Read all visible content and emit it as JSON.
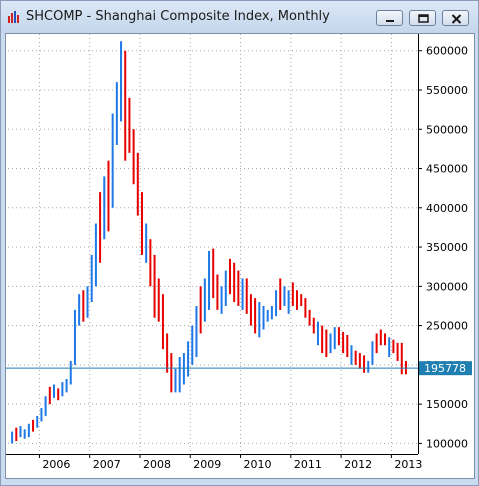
{
  "window": {
    "title": "SHCOMP - Shanghai Composite Index, Monthly",
    "icons": {
      "app": "chart-bars-icon",
      "minimize": "minimize-icon",
      "restore": "restore-icon",
      "close": "close-icon"
    }
  },
  "chart_data": {
    "type": "ohlc",
    "title": "SHCOMP - Shanghai Composite Index, Monthly",
    "ylim": [
      95000,
      615000
    ],
    "y_ticks": [
      100000,
      150000,
      200000,
      250000,
      300000,
      350000,
      400000,
      450000,
      500000,
      550000,
      600000
    ],
    "y_tick_labels": [
      "100000",
      "150000",
      "200000",
      "250000",
      "300000",
      "350000",
      "400000",
      "450000",
      "500000",
      "550000",
      "600000"
    ],
    "x_labels": [
      {
        "label": "2006",
        "index": 7
      },
      {
        "label": "2007",
        "index": 19
      },
      {
        "label": "2008",
        "index": 31
      },
      {
        "label": "2009",
        "index": 43
      },
      {
        "label": "2010",
        "index": 55
      },
      {
        "label": "2011",
        "index": 67
      },
      {
        "label": "2012",
        "index": 79
      },
      {
        "label": "2013",
        "index": 91
      }
    ],
    "current_value": 195778,
    "current_value_label": "195778",
    "up_color": "#1e78e6",
    "down_color": "#e60000",
    "price_line_color": "#1f7fb0",
    "bars": [
      [
        100000,
        115000
      ],
      [
        103000,
        120000
      ],
      [
        108000,
        122000
      ],
      [
        106000,
        118000
      ],
      [
        108000,
        125000
      ],
      [
        115000,
        130000
      ],
      [
        120000,
        135000
      ],
      [
        128000,
        145000
      ],
      [
        135000,
        160000
      ],
      [
        150000,
        172000
      ],
      [
        158000,
        175000
      ],
      [
        155000,
        170000
      ],
      [
        160000,
        178000
      ],
      [
        165000,
        182000
      ],
      [
        175000,
        205000
      ],
      [
        200000,
        270000
      ],
      [
        250000,
        290000
      ],
      [
        255000,
        295000
      ],
      [
        260000,
        300000
      ],
      [
        280000,
        340000
      ],
      [
        300000,
        380000
      ],
      [
        330000,
        420000
      ],
      [
        360000,
        440000
      ],
      [
        370000,
        460000
      ],
      [
        400000,
        520000
      ],
      [
        480000,
        560000
      ],
      [
        510000,
        612000
      ],
      [
        460000,
        600000
      ],
      [
        470000,
        540000
      ],
      [
        430000,
        500000
      ],
      [
        390000,
        470000
      ],
      [
        340000,
        420000
      ],
      [
        330000,
        380000
      ],
      [
        300000,
        360000
      ],
      [
        260000,
        340000
      ],
      [
        255000,
        310000
      ],
      [
        220000,
        290000
      ],
      [
        190000,
        240000
      ],
      [
        165000,
        215000
      ],
      [
        165000,
        195000
      ],
      [
        165000,
        210000
      ],
      [
        175000,
        215000
      ],
      [
        185000,
        230000
      ],
      [
        200000,
        250000
      ],
      [
        210000,
        275000
      ],
      [
        240000,
        300000
      ],
      [
        255000,
        310000
      ],
      [
        270000,
        345000
      ],
      [
        285000,
        348000
      ],
      [
        270000,
        315000
      ],
      [
        265000,
        300000
      ],
      [
        275000,
        320000
      ],
      [
        290000,
        335000
      ],
      [
        280000,
        330000
      ],
      [
        275000,
        320000
      ],
      [
        270000,
        310000
      ],
      [
        265000,
        310000
      ],
      [
        250000,
        290000
      ],
      [
        240000,
        285000
      ],
      [
        235000,
        280000
      ],
      [
        245000,
        275000
      ],
      [
        255000,
        270000
      ],
      [
        258000,
        275000
      ],
      [
        262000,
        295000
      ],
      [
        270000,
        310000
      ],
      [
        275000,
        300000
      ],
      [
        265000,
        295000
      ],
      [
        275000,
        305000
      ],
      [
        270000,
        295000
      ],
      [
        275000,
        290000
      ],
      [
        260000,
        285000
      ],
      [
        250000,
        270000
      ],
      [
        240000,
        260000
      ],
      [
        225000,
        255000
      ],
      [
        215000,
        250000
      ],
      [
        210000,
        245000
      ],
      [
        215000,
        240000
      ],
      [
        220000,
        248000
      ],
      [
        225000,
        248000
      ],
      [
        215000,
        242000
      ],
      [
        210000,
        238000
      ],
      [
        200000,
        225000
      ],
      [
        200000,
        218000
      ],
      [
        195000,
        215000
      ],
      [
        190000,
        212000
      ],
      [
        190000,
        205000
      ],
      [
        200000,
        230000
      ],
      [
        215000,
        240000
      ],
      [
        225000,
        245000
      ],
      [
        225000,
        240000
      ],
      [
        210000,
        235000
      ],
      [
        215000,
        232000
      ],
      [
        205000,
        228000
      ],
      [
        188000,
        228000
      ],
      [
        188000,
        205000
      ]
    ],
    "bar_colors": [
      "u",
      "d",
      "u",
      "u",
      "u",
      "d",
      "u",
      "u",
      "u",
      "d",
      "u",
      "d",
      "u",
      "u",
      "u",
      "u",
      "u",
      "d",
      "u",
      "u",
      "u",
      "d",
      "u",
      "d",
      "u",
      "u",
      "u",
      "d",
      "d",
      "d",
      "d",
      "d",
      "u",
      "d",
      "d",
      "d",
      "d",
      "d",
      "d",
      "u",
      "u",
      "u",
      "u",
      "u",
      "u",
      "d",
      "u",
      "u",
      "d",
      "d",
      "u",
      "u",
      "d",
      "d",
      "d",
      "u",
      "d",
      "d",
      "d",
      "u",
      "u",
      "u",
      "u",
      "u",
      "d",
      "u",
      "u",
      "d",
      "d",
      "d",
      "d",
      "d",
      "d",
      "u",
      "d",
      "d",
      "u",
      "u",
      "d",
      "d",
      "d",
      "u",
      "d",
      "d",
      "d",
      "u",
      "u",
      "d",
      "d",
      "d",
      "u",
      "d",
      "d",
      "d",
      "d"
    ]
  }
}
